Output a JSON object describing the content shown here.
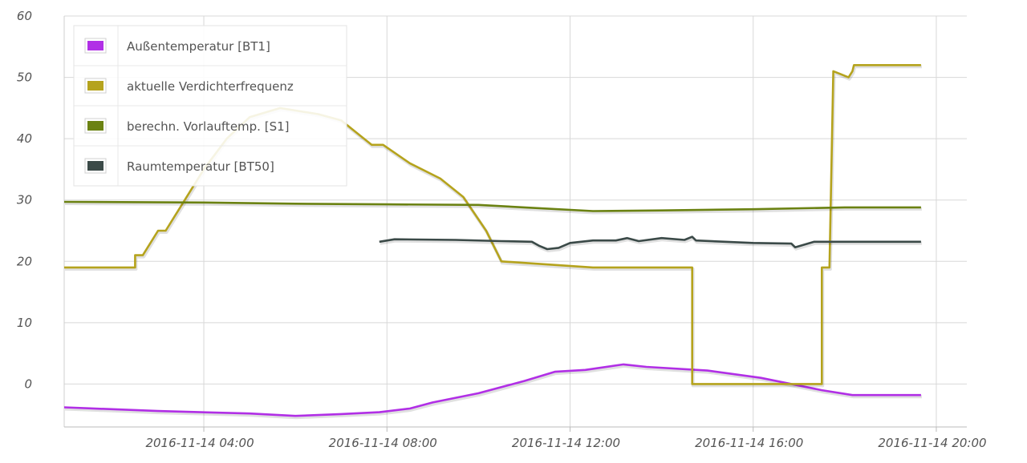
{
  "chart_data": {
    "type": "line",
    "x_axis": {
      "type": "datetime",
      "range": [
        "2016-11-14 00:57",
        "2016-11-14 20:40"
      ],
      "ticks": [
        "2016-11-14 04:00",
        "2016-11-14 08:00",
        "2016-11-14 12:00",
        "2016-11-14 16:00",
        "2016-11-14 20:00"
      ],
      "tick_labels": [
        "2016-11-14 04:00",
        "2016-11-14 08:00",
        "2016-11-14 12:00",
        "2016-11-14 16:00",
        "2016-11-14 20:00"
      ]
    },
    "y_axis": {
      "range": [
        -7,
        60
      ],
      "ticks": [
        0,
        10,
        20,
        30,
        40,
        50,
        60
      ],
      "tick_labels": [
        "0",
        "10",
        "20",
        "30",
        "40",
        "50",
        "60"
      ]
    },
    "grid": true,
    "legend": {
      "placement": "top-left",
      "shape": "filled-square"
    },
    "series": [
      {
        "name": "Außentemperatur [BT1]",
        "color": "#b12fe6",
        "points": [
          [
            "2016-11-14 00:57",
            -3.8
          ],
          [
            "2016-11-14 03:00",
            -4.4
          ],
          [
            "2016-11-14 05:00",
            -4.8
          ],
          [
            "2016-11-14 06:00",
            -5.2
          ],
          [
            "2016-11-14 07:00",
            -4.9
          ],
          [
            "2016-11-14 07:50",
            -4.6
          ],
          [
            "2016-11-14 08:30",
            -4.0
          ],
          [
            "2016-11-14 09:00",
            -3.0
          ],
          [
            "2016-11-14 10:00",
            -1.5
          ],
          [
            "2016-11-14 11:00",
            0.5
          ],
          [
            "2016-11-14 11:40",
            2.0
          ],
          [
            "2016-11-14 12:20",
            2.3
          ],
          [
            "2016-11-14 13:10",
            3.2
          ],
          [
            "2016-11-14 13:40",
            2.8
          ],
          [
            "2016-11-14 15:00",
            2.2
          ],
          [
            "2016-11-14 16:10",
            1.0
          ],
          [
            "2016-11-14 17:30",
            -1.0
          ],
          [
            "2016-11-14 18:10",
            -1.8
          ],
          [
            "2016-11-14 19:40",
            -1.8
          ]
        ]
      },
      {
        "name": "aktuelle Verdichterfrequenz",
        "color": "#b5a31d",
        "points": [
          [
            "2016-11-14 00:57",
            19
          ],
          [
            "2016-11-14 02:30",
            19
          ],
          [
            "2016-11-14 02:30",
            21
          ],
          [
            "2016-11-14 02:40",
            21
          ],
          [
            "2016-11-14 02:50",
            23
          ],
          [
            "2016-11-14 03:00",
            25
          ],
          [
            "2016-11-14 03:10",
            25
          ],
          [
            "2016-11-14 03:20",
            27
          ],
          [
            "2016-11-14 03:30",
            29
          ],
          [
            "2016-11-14 04:00",
            35
          ],
          [
            "2016-11-14 04:30",
            40
          ],
          [
            "2016-11-14 05:00",
            43.5
          ],
          [
            "2016-11-14 05:40",
            45
          ],
          [
            "2016-11-14 06:30",
            44
          ],
          [
            "2016-11-14 07:00",
            43
          ],
          [
            "2016-11-14 07:20",
            41
          ],
          [
            "2016-11-14 07:30",
            40
          ],
          [
            "2016-11-14 07:40",
            39
          ],
          [
            "2016-11-14 07:55",
            39
          ],
          [
            "2016-11-14 08:30",
            36
          ],
          [
            "2016-11-14 09:10",
            33.5
          ],
          [
            "2016-11-14 09:40",
            30.5
          ],
          [
            "2016-11-14 10:10",
            25
          ],
          [
            "2016-11-14 10:30",
            20
          ],
          [
            "2016-11-14 12:30",
            19
          ],
          [
            "2016-11-14 14:40",
            19
          ],
          [
            "2016-11-14 14:40",
            0
          ],
          [
            "2016-11-14 17:30",
            0
          ],
          [
            "2016-11-14 17:30",
            19
          ],
          [
            "2016-11-14 17:40",
            19
          ],
          [
            "2016-11-14 17:45",
            51
          ],
          [
            "2016-11-14 17:55",
            50.5
          ],
          [
            "2016-11-14 18:05",
            50
          ],
          [
            "2016-11-14 18:10",
            51
          ],
          [
            "2016-11-14 18:12",
            52
          ],
          [
            "2016-11-14 19:40",
            52
          ]
        ]
      },
      {
        "name": "berechn. Vorlauftemp. [S1]",
        "color": "#6b8212",
        "points": [
          [
            "2016-11-14 00:57",
            29.7
          ],
          [
            "2016-11-14 04:00",
            29.6
          ],
          [
            "2016-11-14 06:00",
            29.4
          ],
          [
            "2016-11-14 08:00",
            29.3
          ],
          [
            "2016-11-14 10:00",
            29.2
          ],
          [
            "2016-11-14 11:00",
            28.8
          ],
          [
            "2016-11-14 12:30",
            28.2
          ],
          [
            "2016-11-14 14:00",
            28.3
          ],
          [
            "2016-11-14 16:00",
            28.5
          ],
          [
            "2016-11-14 18:00",
            28.8
          ],
          [
            "2016-11-14 19:40",
            28.8
          ]
        ]
      },
      {
        "name": "Raumtemperatur [BT50]",
        "color": "#3b4a48",
        "points": [
          [
            "2016-11-14 07:50",
            23.2
          ],
          [
            "2016-11-14 08:10",
            23.6
          ],
          [
            "2016-11-14 09:30",
            23.5
          ],
          [
            "2016-11-14 10:30",
            23.3
          ],
          [
            "2016-11-14 11:10",
            23.2
          ],
          [
            "2016-11-14 11:20",
            22.5
          ],
          [
            "2016-11-14 11:30",
            22.0
          ],
          [
            "2016-11-14 11:45",
            22.2
          ],
          [
            "2016-11-14 12:00",
            23.0
          ],
          [
            "2016-11-14 12:30",
            23.4
          ],
          [
            "2016-11-14 13:00",
            23.4
          ],
          [
            "2016-11-14 13:15",
            23.8
          ],
          [
            "2016-11-14 13:30",
            23.3
          ],
          [
            "2016-11-14 14:00",
            23.8
          ],
          [
            "2016-11-14 14:30",
            23.5
          ],
          [
            "2016-11-14 14:40",
            24.0
          ],
          [
            "2016-11-14 14:45",
            23.4
          ],
          [
            "2016-11-14 16:00",
            23.0
          ],
          [
            "2016-11-14 16:50",
            22.9
          ],
          [
            "2016-11-14 16:55",
            22.3
          ],
          [
            "2016-11-14 17:20",
            23.2
          ],
          [
            "2016-11-14 18:00",
            23.2
          ],
          [
            "2016-11-14 19:40",
            23.2
          ]
        ]
      }
    ]
  }
}
